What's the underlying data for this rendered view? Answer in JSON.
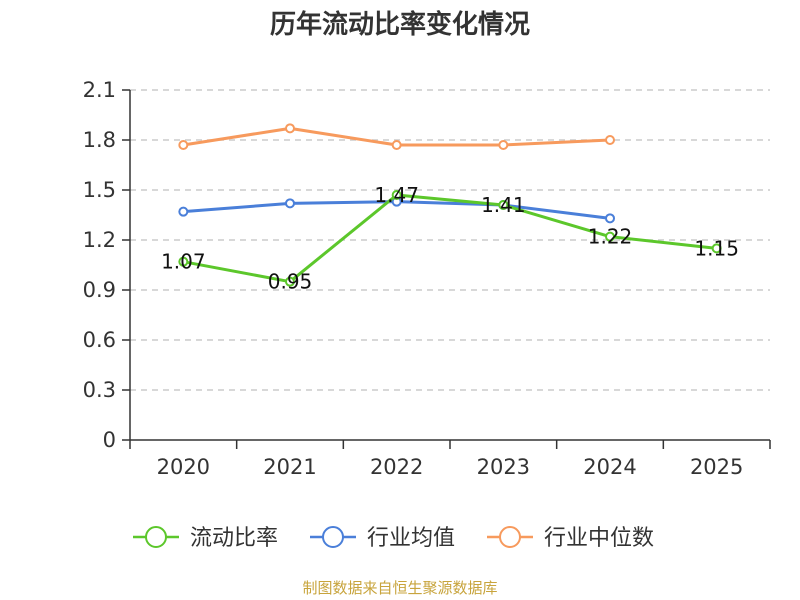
{
  "chart_data": {
    "type": "line",
    "title": "历年流动比率变化情况",
    "categories": [
      "2020",
      "2021",
      "2022",
      "2023",
      "2024",
      "2025"
    ],
    "ylim": [
      0,
      2.1
    ],
    "yticks": [
      "0",
      "0.3",
      "0.6",
      "0.9",
      "1.2",
      "1.5",
      "1.8",
      "2.1"
    ],
    "ytick_values": [
      0,
      0.3,
      0.6,
      0.9,
      1.2,
      1.5,
      1.8,
      2.1
    ],
    "grid": true,
    "legend_position": "bottom",
    "series": [
      {
        "name": "流动比率",
        "color": "#5cc72b",
        "values": [
          1.07,
          0.95,
          1.47,
          1.41,
          1.22,
          1.15
        ],
        "labels": [
          "1.07",
          "0.95",
          "1.47",
          "1.41",
          "1.22",
          "1.15"
        ]
      },
      {
        "name": "行业均值",
        "color": "#4a7fd9",
        "values": [
          1.37,
          1.42,
          1.43,
          1.41,
          1.33,
          null
        ]
      },
      {
        "name": "行业中位数",
        "color": "#f79a5d",
        "values": [
          1.77,
          1.87,
          1.77,
          1.77,
          1.8,
          null
        ]
      }
    ],
    "source": "制图数据来自恒生聚源数据库"
  }
}
